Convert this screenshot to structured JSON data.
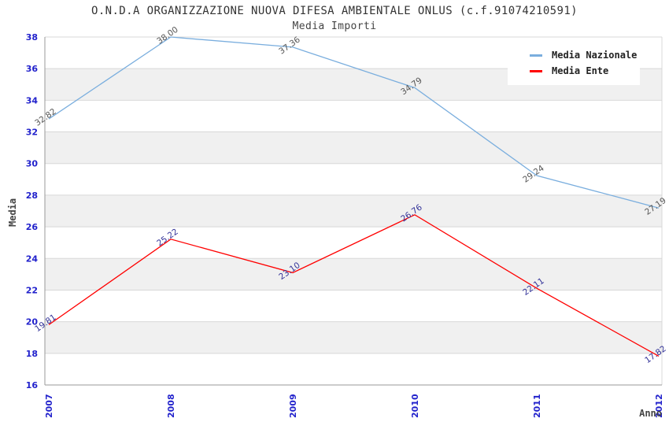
{
  "chart_data": {
    "type": "line",
    "title": "O.N.D.A ORGANIZZAZIONE NUOVA DIFESA AMBIENTALE ONLUS (c.f.91074210591)",
    "subtitle": "Media Importi",
    "xlabel": "Anno",
    "ylabel": "Media",
    "categories": [
      "2007",
      "2008",
      "2009",
      "2010",
      "2011",
      "2012"
    ],
    "series": [
      {
        "name": "Media Nazionale",
        "color": "#7aaede",
        "label_color": "#555555",
        "values": [
          32.82,
          38.0,
          37.36,
          34.79,
          29.24,
          27.19
        ]
      },
      {
        "name": "Media Ente",
        "color": "#ff0000",
        "label_color": "#333399",
        "values": [
          19.81,
          25.22,
          23.1,
          26.76,
          22.11,
          17.82
        ]
      }
    ],
    "ylim": [
      16,
      38
    ],
    "ytick_step": 2,
    "value_decimals": 2,
    "grid": true,
    "legend_position": "top-right",
    "colors": {
      "tick_label": "#2222cc",
      "grid_line": "#d8d8d8",
      "band_fill": "#f0f0f0",
      "axis_line": "#999999",
      "title_text": "#333333"
    }
  }
}
